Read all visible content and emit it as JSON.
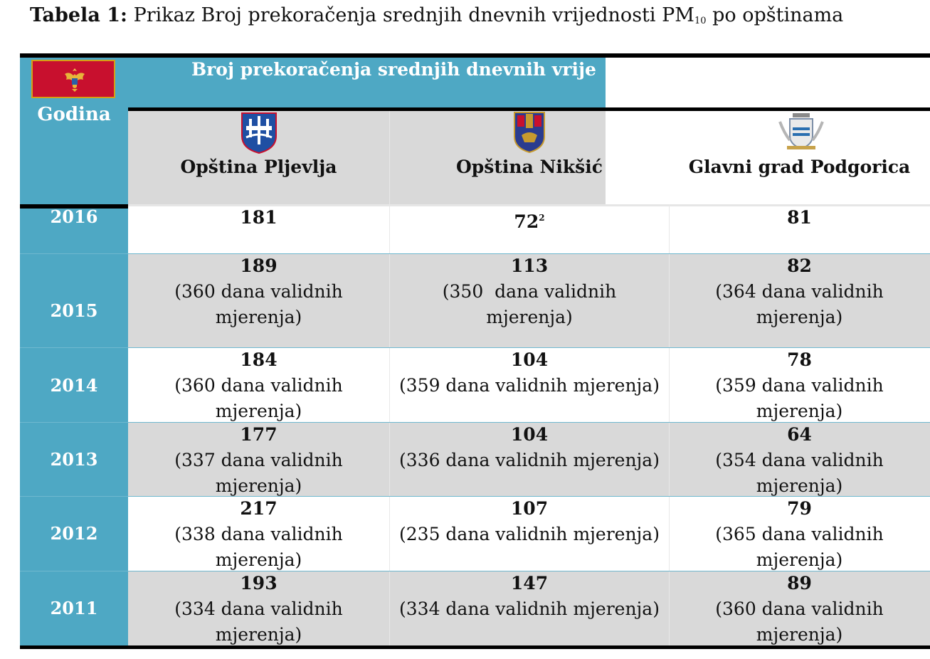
{
  "caption": {
    "label": "Tabela 1:",
    "text_before": "Prikaz Broj prekoračenja srednjih dnevnih vrijednosti PM",
    "subscript": "10",
    "text_after": "po opštinama"
  },
  "header": {
    "year_column": "Godina",
    "band_title": "Broj prekoračenja srednjih dnevnih vrije",
    "municipalities": [
      {
        "name": "Opština Pljevlja",
        "crest": "pljevlja-crest-icon"
      },
      {
        "name": "Opština Nikšić",
        "crest": "niksic-crest-icon"
      },
      {
        "name": "Glavni grad Podgorica",
        "crest": "podgorica-crest-icon"
      }
    ]
  },
  "rows": [
    {
      "year": "2016",
      "cells": [
        {
          "value": "181",
          "lines": []
        },
        {
          "value": "72",
          "sup": "2",
          "lines": []
        },
        {
          "value": "81",
          "lines": []
        }
      ]
    },
    {
      "year": "2015",
      "cells": [
        {
          "value": "189",
          "lines": [
            "(360 dana validnih",
            "mjerenja)"
          ]
        },
        {
          "value": "113",
          "lines": [
            "(350  dana validnih",
            "mjerenja)"
          ]
        },
        {
          "value": "82",
          "lines": [
            "(364 dana validnih",
            "mjerenja)"
          ]
        }
      ]
    },
    {
      "year": "2014",
      "cells": [
        {
          "value": "184",
          "lines": [
            "(360 dana validnih",
            "mjerenja)"
          ]
        },
        {
          "value": "104",
          "lines": [
            "(359 dana validnih mjerenja)"
          ]
        },
        {
          "value": "78",
          "lines": [
            "(359 dana validnih",
            "mjerenja)"
          ]
        }
      ]
    },
    {
      "year": "2013",
      "cells": [
        {
          "value": "177",
          "lines": [
            "(337 dana validnih",
            "mjerenja)"
          ]
        },
        {
          "value": "104",
          "lines": [
            "(336 dana validnih mjerenja)"
          ]
        },
        {
          "value": "64",
          "lines": [
            "(354 dana validnih",
            "mjerenja)"
          ]
        }
      ]
    },
    {
      "year": "2012",
      "cells": [
        {
          "value": "217",
          "lines": [
            "(338 dana validnih",
            "mjerenja)"
          ]
        },
        {
          "value": "107",
          "lines": [
            "(235 dana validnih mjerenja)"
          ]
        },
        {
          "value": "79",
          "lines": [
            "(365 dana validnih",
            "mjerenja)"
          ]
        }
      ]
    },
    {
      "year": "2011",
      "cells": [
        {
          "value": "193",
          "lines": [
            "(334 dana validnih",
            "mjerenja)"
          ]
        },
        {
          "value": "147",
          "lines": [
            "(334 dana validnih mjerenja)"
          ]
        },
        {
          "value": "89",
          "lines": [
            "(360 dana validnih",
            "mjerenja)"
          ]
        }
      ]
    }
  ],
  "colors": {
    "accent_blue": "#4ea8c4",
    "row_gray": "#d9d9d9",
    "flag_red": "#c8102e",
    "flag_gold": "#d4a017"
  }
}
